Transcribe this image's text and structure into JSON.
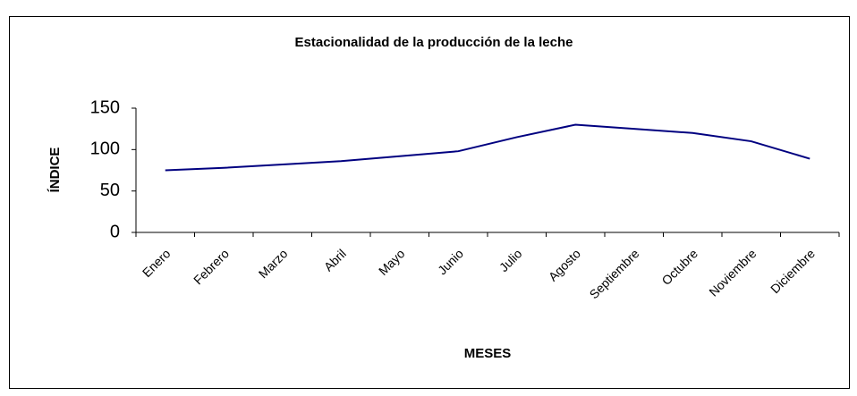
{
  "chart_data": {
    "type": "line",
    "title": "Estacionalidad de la producción de la leche",
    "x_label": "MESES",
    "y_label": "ÍNDICE",
    "categories": [
      "Enero",
      "Febrero",
      "Marzo",
      "Abril",
      "Mayo",
      "Junio",
      "Julio",
      "Agosto",
      "Septiembre",
      "Octubre",
      "Noviembre",
      "Diciembre"
    ],
    "values": [
      75,
      78,
      82,
      86,
      92,
      98,
      115,
      130,
      125,
      120,
      110,
      89
    ],
    "color": "#000080",
    "ylim": [
      0,
      150
    ],
    "yticks": [
      0,
      50,
      100,
      150
    ],
    "grid": false
  }
}
